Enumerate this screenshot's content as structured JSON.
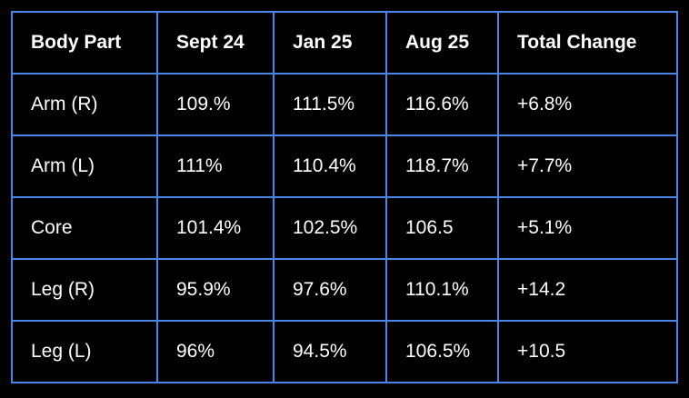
{
  "colors": {
    "table_border": "#4a86e8",
    "background": "#000000",
    "text": "#ffffff"
  },
  "chart_data": {
    "type": "table",
    "columns": [
      "Body Part",
      "Sept 24",
      "Jan 25",
      "Aug 25",
      "Total Change"
    ],
    "rows": [
      [
        "Arm (R)",
        "109.%",
        "111.5%",
        "116.6%",
        "+6.8%"
      ],
      [
        "Arm (L)",
        "111%",
        "110.4%",
        "118.7%",
        "+7.7%"
      ],
      [
        "Core",
        "101.4%",
        "102.5%",
        "106.5",
        "+5.1%"
      ],
      [
        "Leg (R)",
        "95.9%",
        "97.6%",
        "110.1%",
        "+14.2"
      ],
      [
        "Leg (L)",
        "96%",
        "94.5%",
        "106.5%",
        "+10.5"
      ]
    ],
    "layout": {
      "header_row_bold": true,
      "text_align": "left",
      "grid": true
    }
  }
}
